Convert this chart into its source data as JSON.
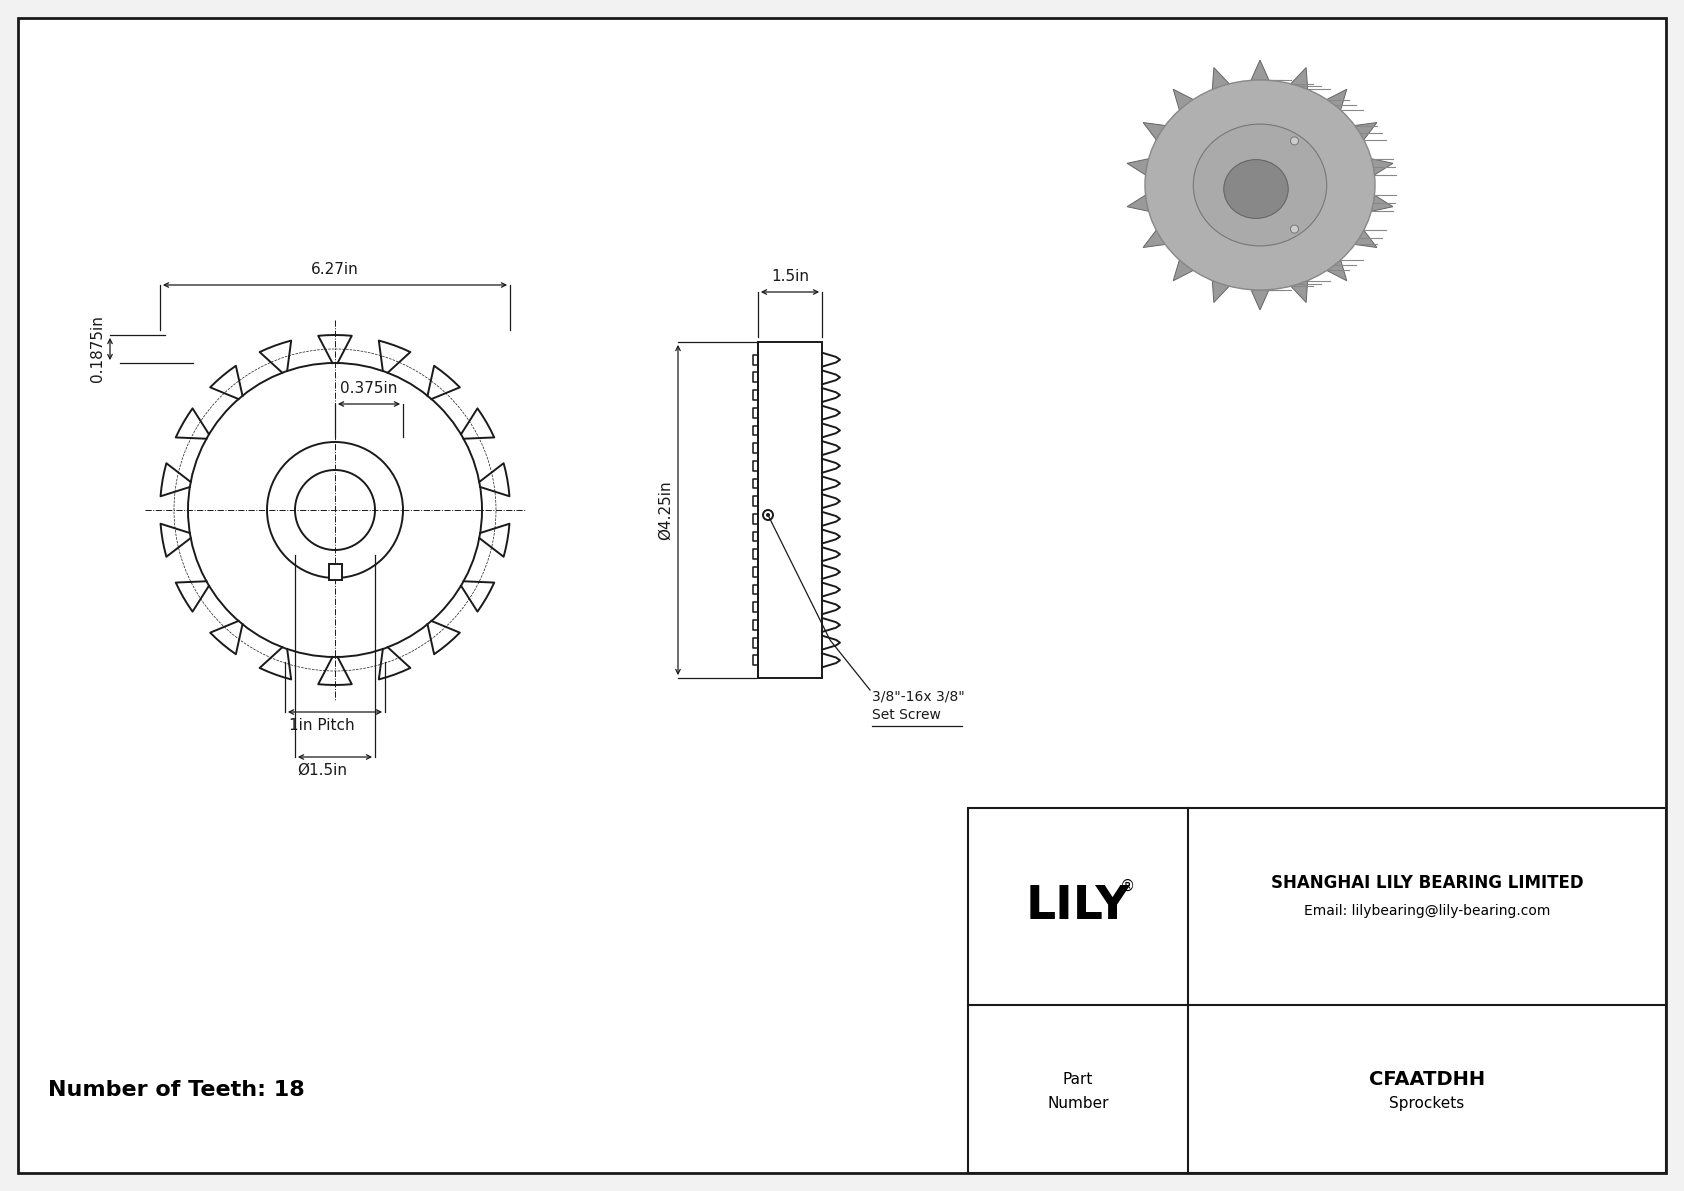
{
  "bg_color": "#f2f2f2",
  "border_color": "#1a1a1a",
  "dim_outer": "6.27in",
  "dim_hub": "0.375in",
  "dim_tooth_height": "0.1875in",
  "dim_pitch": "1in Pitch",
  "dim_bore": "Ø1.5in",
  "dim_side_width": "1.5in",
  "dim_side_od": "Ø4.25in",
  "dim_set_screw_line1": "3/8\"-16x 3/8\"",
  "dim_set_screw_line2": "Set Screw",
  "num_teeth_label": "Number of Teeth: 18",
  "company": "SHANGHAI LILY BEARING LIMITED",
  "email": "Email: lilybearing@lily-bearing.com",
  "part_number": "CFAATDHH",
  "category": "Sprockets",
  "logo": "LILY",
  "n_teeth": 18,
  "col": "#1a1a1a",
  "lw_main": 1.4,
  "lw_dim": 0.9
}
